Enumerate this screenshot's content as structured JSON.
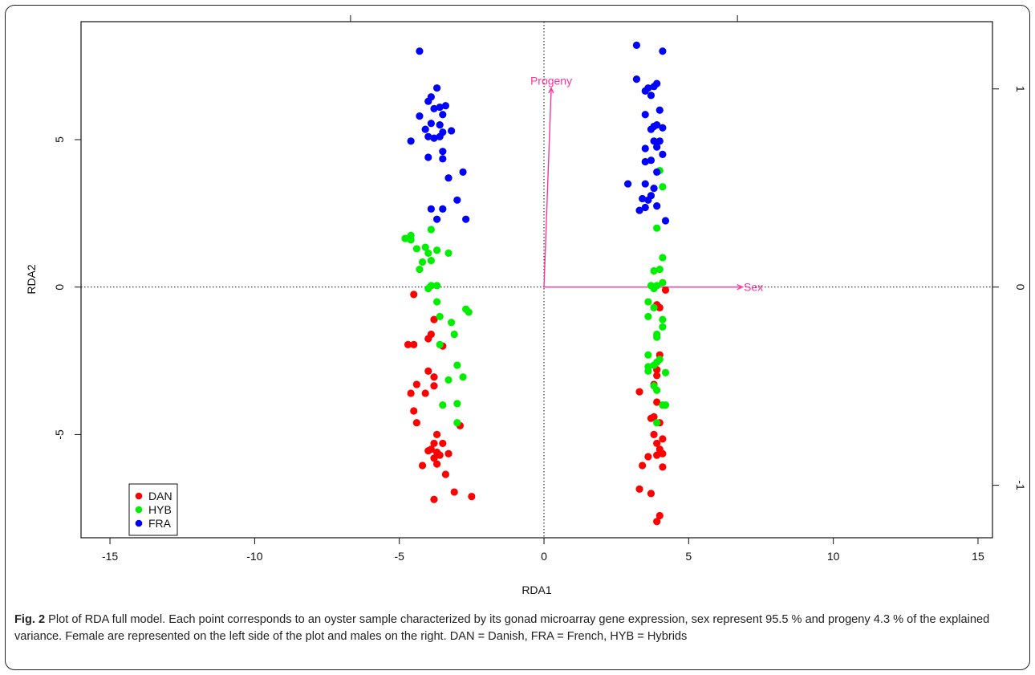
{
  "chart_data": {
    "type": "scatter",
    "title": "",
    "xlabel": "RDA1",
    "ylabel": "RDA2",
    "xlim": [
      -16,
      15.5
    ],
    "ylim": [
      -8.5,
      9
    ],
    "xticks": [
      -15,
      -10,
      -5,
      0,
      5,
      10,
      15
    ],
    "yticks": [
      -5,
      0,
      5
    ],
    "right_axis": {
      "ticks": [
        -1,
        0,
        1
      ],
      "data_per_unit": 6.72
    },
    "reference_lines": {
      "x": 0,
      "y": 0,
      "style": "dotted"
    },
    "legend": {
      "position": "bottom-left",
      "entries": [
        "DAN",
        "HYB",
        "FRA"
      ]
    },
    "series": [
      {
        "name": "DAN",
        "color": "#ff0000",
        "points": [
          [
            -4.5,
            -0.25
          ],
          [
            -3.8,
            -1.1
          ],
          [
            -3.9,
            -1.6
          ],
          [
            -4.7,
            -1.95
          ],
          [
            -4.5,
            -1.95
          ],
          [
            -4.0,
            -1.75
          ],
          [
            -3.5,
            -2.0
          ],
          [
            -4.0,
            -2.85
          ],
          [
            -3.8,
            -3.05
          ],
          [
            -3.8,
            -3.35
          ],
          [
            -4.4,
            -3.3
          ],
          [
            -4.6,
            -3.6
          ],
          [
            -4.1,
            -3.6
          ],
          [
            -4.5,
            -4.2
          ],
          [
            -4.4,
            -4.6
          ],
          [
            -2.9,
            -4.7
          ],
          [
            -3.7,
            -5.0
          ],
          [
            -3.5,
            -5.3
          ],
          [
            -3.8,
            -5.3
          ],
          [
            -3.9,
            -5.5
          ],
          [
            -3.7,
            -5.6
          ],
          [
            -4.0,
            -5.55
          ],
          [
            -3.8,
            -5.8
          ],
          [
            -3.6,
            -5.7
          ],
          [
            -3.3,
            -5.65
          ],
          [
            -4.2,
            -6.05
          ],
          [
            -3.7,
            -6.0
          ],
          [
            -3.4,
            -6.35
          ],
          [
            -3.1,
            -6.95
          ],
          [
            -2.5,
            -7.1
          ],
          [
            -3.8,
            -7.2
          ],
          [
            4.2,
            -0.1
          ],
          [
            3.9,
            -0.6
          ],
          [
            4.0,
            -0.7
          ],
          [
            4.0,
            -2.3
          ],
          [
            3.9,
            -2.8
          ],
          [
            3.9,
            -3.0
          ],
          [
            3.8,
            -3.3
          ],
          [
            3.3,
            -3.55
          ],
          [
            3.9,
            -3.9
          ],
          [
            3.8,
            -4.4
          ],
          [
            3.7,
            -4.45
          ],
          [
            4.0,
            -4.6
          ],
          [
            3.8,
            -5.0
          ],
          [
            4.1,
            -5.15
          ],
          [
            3.9,
            -5.3
          ],
          [
            4.0,
            -5.5
          ],
          [
            4.1,
            -5.65
          ],
          [
            3.9,
            -5.7
          ],
          [
            3.6,
            -5.75
          ],
          [
            4.1,
            -6.1
          ],
          [
            3.4,
            -6.05
          ],
          [
            3.3,
            -6.85
          ],
          [
            3.7,
            -7.0
          ],
          [
            4.0,
            -7.75
          ],
          [
            3.9,
            -7.95
          ]
        ]
      },
      {
        "name": "HYB",
        "color": "#00ee00",
        "points": [
          [
            -3.5,
            2.65
          ],
          [
            -4.6,
            1.75
          ],
          [
            -4.8,
            1.65
          ],
          [
            -4.6,
            1.6
          ],
          [
            -3.9,
            1.95
          ],
          [
            -4.1,
            1.35
          ],
          [
            -4.4,
            1.3
          ],
          [
            -4.0,
            1.15
          ],
          [
            -3.7,
            1.25
          ],
          [
            -3.3,
            1.15
          ],
          [
            -3.9,
            0.9
          ],
          [
            -4.2,
            0.85
          ],
          [
            -4.3,
            0.6
          ],
          [
            -3.9,
            0.05
          ],
          [
            -3.7,
            0.05
          ],
          [
            -4.0,
            -0.05
          ],
          [
            -3.7,
            -0.5
          ],
          [
            -2.7,
            -0.75
          ],
          [
            -2.6,
            -0.85
          ],
          [
            -3.6,
            -1.0
          ],
          [
            -3.2,
            -1.2
          ],
          [
            -3.1,
            -1.6
          ],
          [
            -3.6,
            -1.95
          ],
          [
            -3.0,
            -2.65
          ],
          [
            -2.8,
            -3.05
          ],
          [
            -3.3,
            -3.15
          ],
          [
            -3.5,
            -4.0
          ],
          [
            -3.0,
            -3.95
          ],
          [
            -3.0,
            -4.6
          ],
          [
            4.0,
            3.95
          ],
          [
            4.1,
            3.4
          ],
          [
            3.9,
            2.0
          ],
          [
            4.1,
            1.0
          ],
          [
            4.0,
            0.6
          ],
          [
            3.8,
            0.55
          ],
          [
            4.1,
            0.15
          ],
          [
            3.9,
            0.05
          ],
          [
            3.7,
            0.05
          ],
          [
            3.8,
            -0.05
          ],
          [
            3.6,
            -0.5
          ],
          [
            3.8,
            -0.7
          ],
          [
            3.6,
            -1.0
          ],
          [
            4.1,
            -1.1
          ],
          [
            4.1,
            -1.35
          ],
          [
            3.9,
            -1.6
          ],
          [
            3.9,
            -1.7
          ],
          [
            3.6,
            -2.3
          ],
          [
            4.0,
            -2.45
          ],
          [
            3.9,
            -2.55
          ],
          [
            3.8,
            -2.65
          ],
          [
            3.6,
            -2.7
          ],
          [
            3.6,
            -2.85
          ],
          [
            4.2,
            -2.9
          ],
          [
            3.8,
            -3.35
          ],
          [
            3.9,
            -3.5
          ],
          [
            4.1,
            -4.0
          ],
          [
            4.2,
            -4.0
          ],
          [
            3.9,
            -4.6
          ]
        ]
      },
      {
        "name": "FRA",
        "color": "#0000ff",
        "points": [
          [
            -4.3,
            8.0
          ],
          [
            -3.7,
            6.75
          ],
          [
            -3.9,
            6.45
          ],
          [
            -4.0,
            6.3
          ],
          [
            -3.6,
            6.1
          ],
          [
            -3.4,
            6.15
          ],
          [
            -3.8,
            6.05
          ],
          [
            -3.5,
            5.85
          ],
          [
            -4.3,
            5.8
          ],
          [
            -3.9,
            5.55
          ],
          [
            -3.6,
            5.5
          ],
          [
            -4.1,
            5.35
          ],
          [
            -3.2,
            5.3
          ],
          [
            -3.5,
            5.25
          ],
          [
            -4.0,
            5.1
          ],
          [
            -3.8,
            5.05
          ],
          [
            -3.6,
            5.1
          ],
          [
            -4.6,
            4.95
          ],
          [
            -3.5,
            4.6
          ],
          [
            -4.0,
            4.4
          ],
          [
            -3.5,
            4.35
          ],
          [
            -2.8,
            3.9
          ],
          [
            -3.3,
            3.7
          ],
          [
            -3.0,
            2.95
          ],
          [
            -3.9,
            2.65
          ],
          [
            -3.5,
            2.65
          ],
          [
            -2.7,
            2.3
          ],
          [
            -3.7,
            2.3
          ],
          [
            3.2,
            8.2
          ],
          [
            4.1,
            8.0
          ],
          [
            3.2,
            7.05
          ],
          [
            3.9,
            6.9
          ],
          [
            3.6,
            6.75
          ],
          [
            3.8,
            6.8
          ],
          [
            3.7,
            6.5
          ],
          [
            3.5,
            6.65
          ],
          [
            4.0,
            6.0
          ],
          [
            3.5,
            5.85
          ],
          [
            3.9,
            5.5
          ],
          [
            3.8,
            5.45
          ],
          [
            3.7,
            5.35
          ],
          [
            4.1,
            5.4
          ],
          [
            3.8,
            4.95
          ],
          [
            4.0,
            4.95
          ],
          [
            3.9,
            4.75
          ],
          [
            3.5,
            4.7
          ],
          [
            4.1,
            4.5
          ],
          [
            3.7,
            4.3
          ],
          [
            3.5,
            4.25
          ],
          [
            3.9,
            3.9
          ],
          [
            2.9,
            3.5
          ],
          [
            3.5,
            3.5
          ],
          [
            3.8,
            3.35
          ],
          [
            3.7,
            3.1
          ],
          [
            3.4,
            3.0
          ],
          [
            3.6,
            2.95
          ],
          [
            3.9,
            2.75
          ],
          [
            3.5,
            2.7
          ],
          [
            3.3,
            2.6
          ],
          [
            4.2,
            2.25
          ]
        ]
      }
    ],
    "vectors": [
      {
        "name": "Progeny",
        "color": "#ff3399",
        "x": 0.25,
        "y": 6.75
      },
      {
        "name": "Sex",
        "color": "#ff3399",
        "x": 6.85,
        "y": 0
      }
    ]
  },
  "caption": {
    "label": "Fig. 2",
    "text": "Plot of RDA full model. Each point corresponds to an oyster sample characterized by its gonad microarray gene expression, sex represent 95.5 % and progeny 4.3 % of the explained variance. Female are represented on the left side of the plot and males on the right. DAN = Danish, FRA = French, HYB = Hybrids"
  }
}
